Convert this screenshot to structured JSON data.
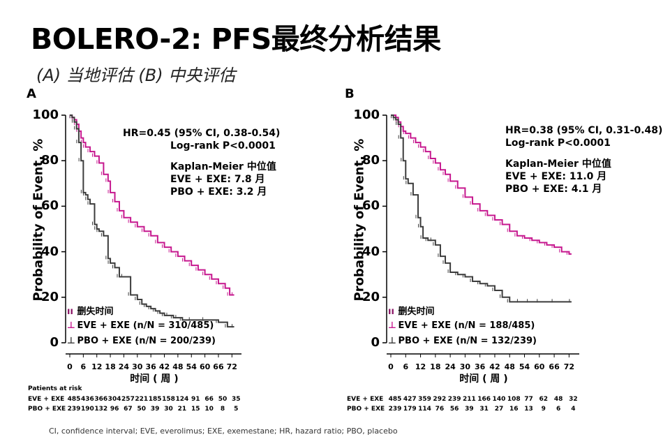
{
  "title": "BOLERO-2: PFS最终分析结果",
  "subtitle": "(A) 当地评估 (B) 中央评估",
  "footer": "CI, confidence interval; EVE, everolimus; EXE, exemestane; HR, hazard ratio; PBO, placebo",
  "risk_title": "Patients at risk",
  "colors": {
    "eve": "#c6178e",
    "pbo": "#3c3c3c"
  },
  "chart_data": [
    {
      "type": "line",
      "panel": "A",
      "xlabel": "时间 ( 周 )",
      "ylabel": "Probability of Event, %",
      "xlim": [
        0,
        75
      ],
      "ylim": [
        0,
        100
      ],
      "xticks": [
        0,
        6,
        12,
        18,
        24,
        30,
        36,
        42,
        48,
        54,
        60,
        66,
        72
      ],
      "yticks": [
        0,
        20,
        40,
        60,
        80,
        100
      ],
      "annotations": [
        "HR=0.45 (95% CI, 0.38-0.54)",
        "Log-rank P<0.0001",
        "Kaplan-Meier 中位值",
        "EVE + EXE: 7.8 月",
        "PBO + EXE: 3.2 月"
      ],
      "legend": [
        "删失时间",
        "EVE + EXE (n/N = 310/485)",
        "PBO + EXE (n/N = 200/239)"
      ],
      "series": [
        {
          "name": "EVE + EXE (n/N = 310/485)",
          "color": "eve",
          "x": [
            0,
            1,
            2,
            3,
            4,
            5,
            6,
            7,
            9,
            11,
            13,
            15,
            17,
            18,
            20,
            22,
            24,
            27,
            30,
            33,
            36,
            39,
            42,
            45,
            48,
            51,
            54,
            57,
            60,
            63,
            66,
            69,
            71,
            73
          ],
          "y": [
            100,
            99,
            98,
            96,
            93,
            90,
            88,
            86,
            84,
            82,
            79,
            74,
            71,
            66,
            62,
            58,
            55,
            53,
            51,
            49,
            47,
            44,
            42,
            40,
            38,
            36,
            34,
            32,
            30,
            28,
            26,
            24,
            21,
            21
          ]
        },
        {
          "name": "PBO + EXE (n/N = 200/239)",
          "color": "pbo",
          "x": [
            0,
            1,
            2,
            3,
            4,
            5,
            6,
            7,
            8,
            9,
            11,
            12,
            13,
            15,
            17,
            18,
            20,
            22,
            24,
            27,
            30,
            32,
            34,
            36,
            38,
            40,
            42,
            44,
            46,
            48,
            50,
            54,
            60,
            66,
            70,
            73
          ],
          "y": [
            100,
            99,
            97,
            94,
            88,
            80,
            66,
            65,
            63,
            61,
            52,
            50,
            49,
            47,
            37,
            35,
            33,
            29,
            29,
            21,
            19,
            17,
            16,
            15,
            14,
            13,
            12,
            12,
            11,
            11,
            10,
            10,
            10,
            9,
            7,
            7
          ]
        }
      ],
      "risk": [
        {
          "label": "EVE + EXE",
          "values": [
            "485",
            "436",
            "366",
            "304",
            "257",
            "221",
            "185",
            "158",
            "124",
            "91",
            "66",
            "50",
            "35"
          ]
        },
        {
          "label": "PBO + EXE",
          "values": [
            "239",
            "190",
            "132",
            "96",
            "67",
            "50",
            "39",
            "30",
            "21",
            "15",
            "10",
            "8",
            "5"
          ]
        }
      ]
    },
    {
      "type": "line",
      "panel": "B",
      "xlabel": "时间 ( 周 )",
      "ylabel": "Probability of Event, %",
      "xlim": [
        0,
        75
      ],
      "ylim": [
        0,
        100
      ],
      "xticks": [
        0,
        6,
        12,
        18,
        24,
        30,
        36,
        42,
        48,
        54,
        60,
        66,
        72
      ],
      "yticks": [
        0,
        20,
        40,
        60,
        80,
        100
      ],
      "annotations": [
        "HR=0.38 (95% CI, 0.31-0.48)",
        "Log-rank P<0.0001",
        "Kaplan-Meier 中位值",
        "EVE + EXE: 11.0 月",
        "PBO + EXE: 4.1 月"
      ],
      "legend": [
        "删失时间",
        "EVE + EXE (n/N = 188/485)",
        "PBO + EXE (n/N = 132/239)"
      ],
      "series": [
        {
          "name": "EVE + EXE (n/N = 188/485)",
          "color": "eve",
          "x": [
            0,
            2,
            3,
            4,
            5,
            6,
            8,
            10,
            12,
            14,
            16,
            18,
            20,
            22,
            24,
            27,
            30,
            33,
            36,
            39,
            42,
            45,
            48,
            51,
            54,
            57,
            60,
            63,
            66,
            69,
            72,
            73
          ],
          "y": [
            100,
            99,
            97,
            95,
            93,
            92,
            90,
            88,
            86,
            84,
            81,
            79,
            76,
            74,
            71,
            68,
            64,
            61,
            58,
            56,
            54,
            52,
            49,
            47,
            46,
            45,
            44,
            43,
            42,
            40,
            39,
            39
          ]
        },
        {
          "name": "PBO + EXE (n/N = 132/239)",
          "color": "pbo",
          "x": [
            0,
            1,
            2,
            3,
            4,
            5,
            6,
            7,
            9,
            11,
            12,
            13,
            15,
            17,
            18,
            20,
            22,
            24,
            27,
            30,
            33,
            36,
            39,
            42,
            45,
            48,
            52,
            56,
            60,
            66,
            73
          ],
          "y": [
            100,
            99,
            98,
            96,
            90,
            80,
            72,
            70,
            65,
            55,
            51,
            46,
            45,
            45,
            43,
            38,
            35,
            31,
            30,
            29,
            27,
            26,
            25,
            23,
            20,
            18,
            18,
            18,
            18,
            18,
            18
          ]
        }
      ],
      "risk": [
        {
          "label": "EVE + EXE",
          "values": [
            "485",
            "427",
            "359",
            "292",
            "239",
            "211",
            "166",
            "140",
            "108",
            "77",
            "62",
            "48",
            "32"
          ]
        },
        {
          "label": "PBO + EXE",
          "values": [
            "239",
            "179",
            "114",
            "76",
            "56",
            "39",
            "31",
            "27",
            "16",
            "13",
            "9",
            "6",
            "4"
          ]
        }
      ]
    }
  ]
}
